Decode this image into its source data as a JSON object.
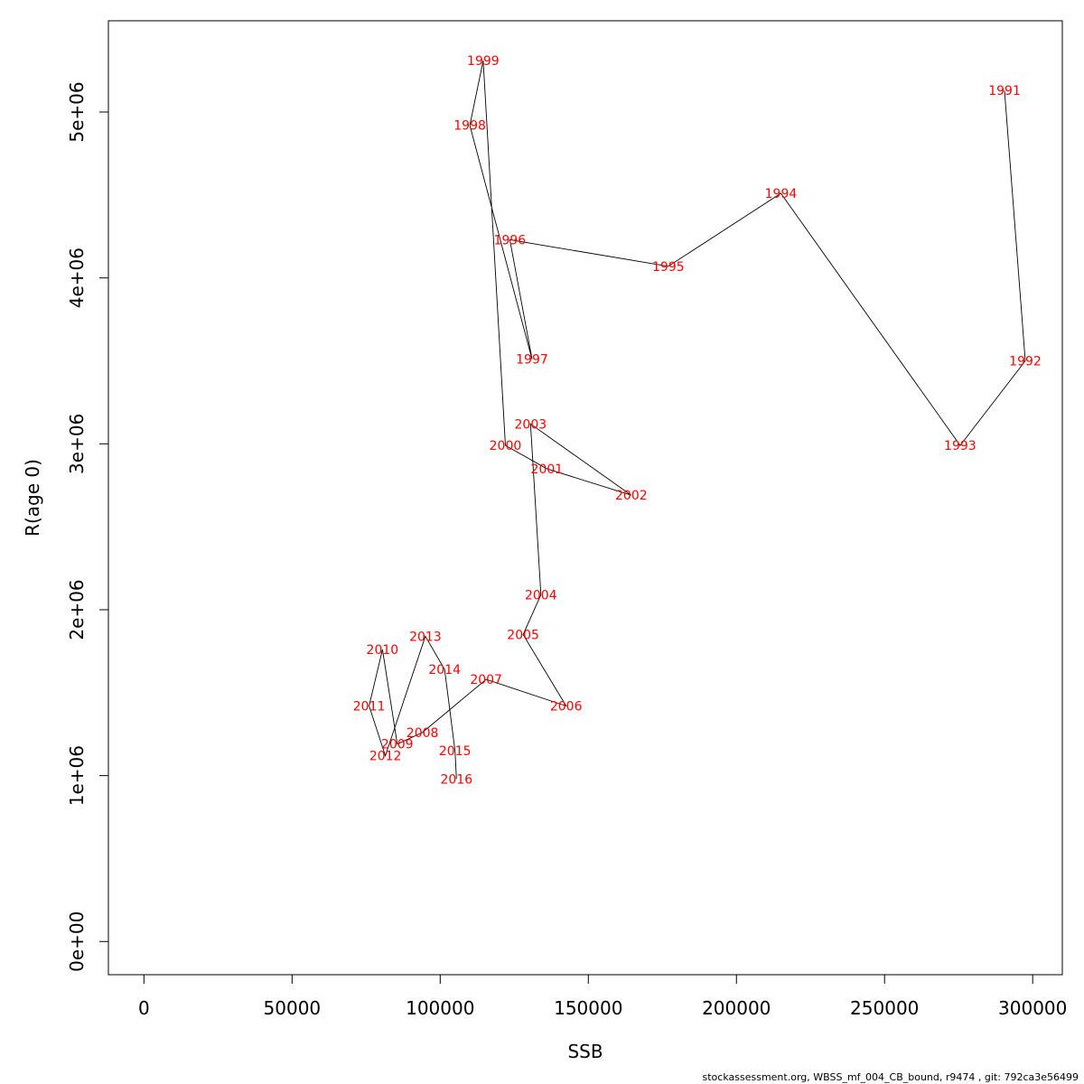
{
  "chart_data": {
    "type": "line",
    "title": "",
    "xlabel": "SSB",
    "ylabel": "R(age 0)",
    "xlim": [
      -12000,
      310000
    ],
    "ylim": [
      -200000,
      5550000
    ],
    "x_ticks": [
      0,
      50000,
      100000,
      150000,
      200000,
      250000,
      300000
    ],
    "x_tick_labels": [
      "0",
      "50000",
      "100000",
      "150000",
      "200000",
      "250000",
      "300000"
    ],
    "y_ticks": [
      0,
      1000000,
      2000000,
      3000000,
      4000000,
      5000000
    ],
    "y_tick_labels": [
      "0e+00",
      "1e+06",
      "2e+06",
      "3e+06",
      "4e+06",
      "5e+06"
    ],
    "grid": false,
    "line_color": "#000000",
    "label_color": "#ff0000",
    "points": [
      {
        "year": "1991",
        "x": 290500,
        "y": 5130000
      },
      {
        "year": "1992",
        "x": 297500,
        "y": 3500000
      },
      {
        "year": "1993",
        "x": 275500,
        "y": 2990000
      },
      {
        "year": "1994",
        "x": 215000,
        "y": 4510000
      },
      {
        "year": "1995",
        "x": 177000,
        "y": 4070000
      },
      {
        "year": "1996",
        "x": 123500,
        "y": 4230000
      },
      {
        "year": "1997",
        "x": 131000,
        "y": 3510000
      },
      {
        "year": "1998",
        "x": 110000,
        "y": 4920000
      },
      {
        "year": "1999",
        "x": 114500,
        "y": 5310000
      },
      {
        "year": "2000",
        "x": 122000,
        "y": 2990000
      },
      {
        "year": "2001",
        "x": 136000,
        "y": 2850000
      },
      {
        "year": "2002",
        "x": 164500,
        "y": 2690000
      },
      {
        "year": "2003",
        "x": 130500,
        "y": 3120000
      },
      {
        "year": "2004",
        "x": 134000,
        "y": 2090000
      },
      {
        "year": "2005",
        "x": 128000,
        "y": 1850000
      },
      {
        "year": "2006",
        "x": 142500,
        "y": 1420000
      },
      {
        "year": "2007",
        "x": 115500,
        "y": 1580000
      },
      {
        "year": "2008",
        "x": 94000,
        "y": 1260000
      },
      {
        "year": "2009",
        "x": 85500,
        "y": 1190000
      },
      {
        "year": "2010",
        "x": 80500,
        "y": 1760000
      },
      {
        "year": "2011",
        "x": 76000,
        "y": 1420000
      },
      {
        "year": "2012",
        "x": 81500,
        "y": 1120000
      },
      {
        "year": "2013",
        "x": 95000,
        "y": 1840000
      },
      {
        "year": "2014",
        "x": 101500,
        "y": 1640000
      },
      {
        "year": "2015",
        "x": 105000,
        "y": 1150000
      },
      {
        "year": "2016",
        "x": 105500,
        "y": 980000
      }
    ]
  },
  "footer": {
    "text": "stockassessment.org, WBSS_mf_004_CB_bound, r9474 , git: 792ca3e56499"
  }
}
